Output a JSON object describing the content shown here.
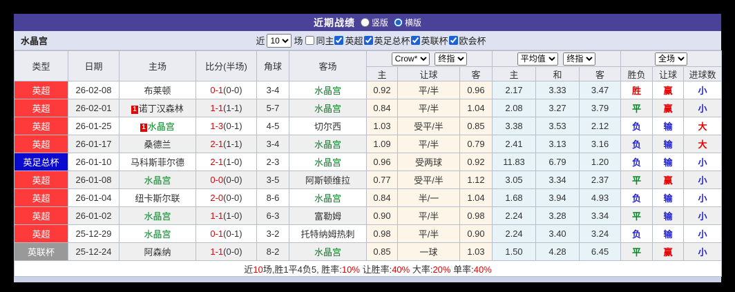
{
  "colors": {
    "red": "#e60000",
    "blue": "#2323cc",
    "green": "#008822",
    "black": "#333333",
    "badge_red": "#ff3a3a",
    "badge_blue": "#0b0bd0",
    "badge_gray": "#999999",
    "titlebar_bg": "#4a4198",
    "filterbar_bg": "#dfe3f1",
    "asian_col_bg": "#fcf5e8",
    "euro_col_bg": "#e8f3f8"
  },
  "titlebar": {
    "title": "近期战绩",
    "radio_vertical": "竖版",
    "radio_horizontal": "横版",
    "selected": "横版"
  },
  "filterbar": {
    "team": "水晶宫",
    "near_label": "近",
    "match_count": "10",
    "field_label": "场",
    "checkboxes": [
      {
        "label": "同主",
        "checked": false
      },
      {
        "label": "英超",
        "checked": true
      },
      {
        "label": "英足总杯",
        "checked": true
      },
      {
        "label": "英联杯",
        "checked": true
      },
      {
        "label": "欧会杯",
        "checked": true
      }
    ]
  },
  "table": {
    "main_headers": [
      "类型",
      "日期",
      "主场",
      "比分(半场)",
      "角球",
      "客场"
    ],
    "group_selects": {
      "asia_company": "Crow*",
      "asia_time": "终指",
      "europe_company": "平均值",
      "europe_time": "终指",
      "scope": "全场"
    },
    "sub_headers": [
      "主",
      "让球",
      "客",
      "主",
      "和",
      "客",
      "胜负",
      "让球",
      "进球数"
    ],
    "rows": [
      {
        "league": "英超",
        "league_color": "badge_red",
        "date": "26-02-08",
        "home": "布莱顿",
        "home_rank": "",
        "home_color": "black",
        "score_ft": "0-1",
        "score_ht": "(0-0)",
        "corners": "3-4",
        "away": "水晶宫",
        "away_color": "green",
        "ah_home": "0.92",
        "ah_line": "平/半",
        "ah_away": "0.96",
        "eu_home": "2.17",
        "eu_draw": "3.33",
        "eu_away": "3.47",
        "outcome": "胜",
        "outcome_color": "red",
        "cover": "赢",
        "cover_color": "red",
        "goals": "小",
        "goals_color": "blue"
      },
      {
        "league": "英超",
        "league_color": "badge_red",
        "date": "26-02-01",
        "home": "诺丁汉森林",
        "home_rank": "1",
        "home_color": "black",
        "score_ft": "1-1",
        "score_ht": "(1-1)",
        "corners": "5-7",
        "away": "水晶宫",
        "away_color": "green",
        "ah_home": "0.84",
        "ah_line": "平/半",
        "ah_away": "1.04",
        "eu_home": "2.08",
        "eu_draw": "3.27",
        "eu_away": "3.79",
        "outcome": "平",
        "outcome_color": "green",
        "cover": "赢",
        "cover_color": "red",
        "goals": "小",
        "goals_color": "blue"
      },
      {
        "league": "英超",
        "league_color": "badge_red",
        "date": "26-01-25",
        "home": "水晶宫",
        "home_rank": "1",
        "home_color": "green",
        "score_ft": "1-3",
        "score_ht": "(0-1)",
        "corners": "4-5",
        "away": "切尔西",
        "away_color": "black",
        "ah_home": "1.03",
        "ah_line": "受平/半",
        "ah_away": "0.85",
        "eu_home": "3.38",
        "eu_draw": "3.53",
        "eu_away": "2.12",
        "outcome": "负",
        "outcome_color": "blue",
        "cover": "输",
        "cover_color": "blue",
        "goals": "大",
        "goals_color": "red"
      },
      {
        "league": "英超",
        "league_color": "badge_red",
        "date": "26-01-17",
        "home": "桑德兰",
        "home_rank": "",
        "home_color": "black",
        "score_ft": "2-1",
        "score_ht": "(1-1)",
        "corners": "3-4",
        "away": "水晶宫",
        "away_color": "green",
        "ah_home": "1.09",
        "ah_line": "平/半",
        "ah_away": "0.79",
        "eu_home": "2.41",
        "eu_draw": "3.13",
        "eu_away": "3.16",
        "outcome": "负",
        "outcome_color": "blue",
        "cover": "输",
        "cover_color": "blue",
        "goals": "大",
        "goals_color": "red"
      },
      {
        "league": "英足总杯",
        "league_color": "badge_blue",
        "date": "26-01-10",
        "home": "马科斯菲尔德",
        "home_rank": "",
        "home_color": "black",
        "score_ft": "2-1",
        "score_ht": "(1-0)",
        "corners": "2-3",
        "away": "水晶宫",
        "away_color": "green",
        "ah_home": "0.96",
        "ah_line": "受两球",
        "ah_away": "0.92",
        "eu_home": "11.83",
        "eu_draw": "6.79",
        "eu_away": "1.20",
        "outcome": "负",
        "outcome_color": "blue",
        "cover": "输",
        "cover_color": "blue",
        "goals": "小",
        "goals_color": "blue"
      },
      {
        "league": "英超",
        "league_color": "badge_red",
        "date": "26-01-08",
        "home": "水晶宫",
        "home_rank": "",
        "home_color": "green",
        "score_ft": "0-0",
        "score_ht": "(0-0)",
        "corners": "3-5",
        "away": "阿斯顿维拉",
        "away_color": "black",
        "ah_home": "0.77",
        "ah_line": "受平/半",
        "ah_away": "1.12",
        "eu_home": "3.05",
        "eu_draw": "3.34",
        "eu_away": "2.37",
        "outcome": "平",
        "outcome_color": "green",
        "cover": "赢",
        "cover_color": "red",
        "goals": "小",
        "goals_color": "blue"
      },
      {
        "league": "英超",
        "league_color": "badge_red",
        "date": "26-01-04",
        "home": "纽卡斯尔联",
        "home_rank": "",
        "home_color": "black",
        "score_ft": "2-0",
        "score_ht": "(0-0)",
        "corners": "8-6",
        "away": "水晶宫",
        "away_color": "green",
        "ah_home": "0.84",
        "ah_line": "半/一",
        "ah_away": "1.04",
        "eu_home": "1.68",
        "eu_draw": "3.94",
        "eu_away": "4.93",
        "outcome": "负",
        "outcome_color": "blue",
        "cover": "输",
        "cover_color": "blue",
        "goals": "小",
        "goals_color": "blue"
      },
      {
        "league": "英超",
        "league_color": "badge_red",
        "date": "26-01-02",
        "home": "水晶宫",
        "home_rank": "",
        "home_color": "green",
        "score_ft": "1-1",
        "score_ht": "(1-0)",
        "corners": "6-3",
        "away": "富勒姆",
        "away_color": "black",
        "ah_home": "0.90",
        "ah_line": "平/半",
        "ah_away": "0.98",
        "eu_home": "2.24",
        "eu_draw": "3.28",
        "eu_away": "3.34",
        "outcome": "平",
        "outcome_color": "green",
        "cover": "输",
        "cover_color": "blue",
        "goals": "小",
        "goals_color": "blue"
      },
      {
        "league": "英超",
        "league_color": "badge_red",
        "date": "25-12-29",
        "home": "水晶宫",
        "home_rank": "",
        "home_color": "green",
        "score_ft": "0-1",
        "score_ht": "(0-1)",
        "corners": "3-2",
        "away": "托特纳姆热刺",
        "away_color": "black",
        "ah_home": "0.98",
        "ah_line": "平/半",
        "ah_away": "0.90",
        "eu_home": "2.24",
        "eu_draw": "3.40",
        "eu_away": "3.24",
        "outcome": "负",
        "outcome_color": "blue",
        "cover": "输",
        "cover_color": "blue",
        "goals": "小",
        "goals_color": "blue"
      },
      {
        "league": "英联杯",
        "league_color": "badge_gray",
        "date": "25-12-24",
        "home": "阿森纳",
        "home_rank": "",
        "home_color": "black",
        "score_ft": "1-1",
        "score_ht": "(0-0)",
        "corners": "8-2",
        "away": "水晶宫",
        "away_color": "green",
        "ah_home": "0.85",
        "ah_line": "一球",
        "ah_away": "1.03",
        "eu_home": "1.50",
        "eu_draw": "4.28",
        "eu_away": "6.45",
        "outcome": "平",
        "outcome_color": "green",
        "cover": "赢",
        "cover_color": "red",
        "goals": "小",
        "goals_color": "blue"
      }
    ]
  },
  "footer": {
    "segments": [
      {
        "text": "近",
        "color": "black"
      },
      {
        "text": "10",
        "color": "red"
      },
      {
        "text": "场,胜1平4负5, 胜率:",
        "color": "black"
      },
      {
        "text": "10%",
        "color": "red"
      },
      {
        "text": " 让胜率:",
        "color": "black"
      },
      {
        "text": "40%",
        "color": "red"
      },
      {
        "text": " 大率:",
        "color": "black"
      },
      {
        "text": "20%",
        "color": "red"
      },
      {
        "text": " 单率:",
        "color": "black"
      },
      {
        "text": "40%",
        "color": "red"
      }
    ]
  }
}
